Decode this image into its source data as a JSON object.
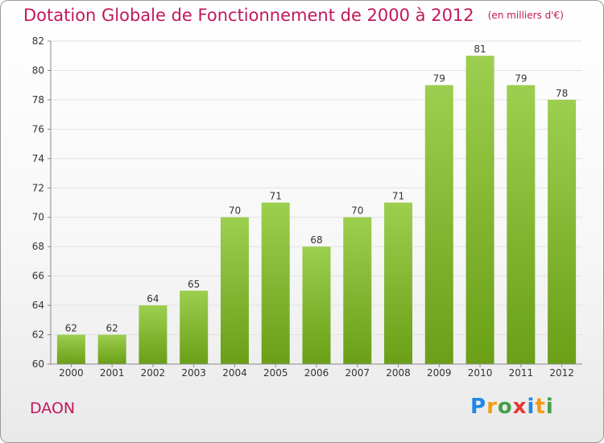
{
  "title": "Dotation Globale de Fonctionnement de 2000 à 2012",
  "unit": "(en milliers d'€)",
  "commune": "DAON",
  "logo": {
    "text": "Proxiti",
    "letters": [
      {
        "ch": "P",
        "color": "#1e88e5"
      },
      {
        "ch": "r",
        "color": "#f39c12"
      },
      {
        "ch": "o",
        "color": "#43a047"
      },
      {
        "ch": "x",
        "color": "#e53935"
      },
      {
        "ch": "i",
        "color": "#1e88e5"
      },
      {
        "ch": "t",
        "color": "#f39c12"
      },
      {
        "ch": "i",
        "color": "#43a047"
      }
    ]
  },
  "colors": {
    "bar_top": "#9ccf4f",
    "bar_bottom": "#6a9f17",
    "title": "#c2185b",
    "text": "#333333",
    "grid": "#e2e2e2",
    "axis": "#8a8a8a"
  },
  "chart_data": {
    "type": "bar",
    "categories": [
      "2000",
      "2001",
      "2002",
      "2003",
      "2004",
      "2005",
      "2006",
      "2007",
      "2008",
      "2009",
      "2010",
      "2011",
      "2012"
    ],
    "values": [
      62,
      62,
      64,
      65,
      70,
      71,
      68,
      70,
      71,
      79,
      81,
      79,
      78
    ],
    "data_labels": [
      "62",
      "62",
      "64",
      "65",
      "70",
      "71",
      "68",
      "70",
      "71",
      "79",
      "81",
      "79",
      "78"
    ],
    "ylim": [
      60,
      82
    ],
    "yticks": [
      60,
      62,
      64,
      66,
      68,
      70,
      72,
      74,
      76,
      78,
      80,
      82
    ],
    "grid": true
  }
}
